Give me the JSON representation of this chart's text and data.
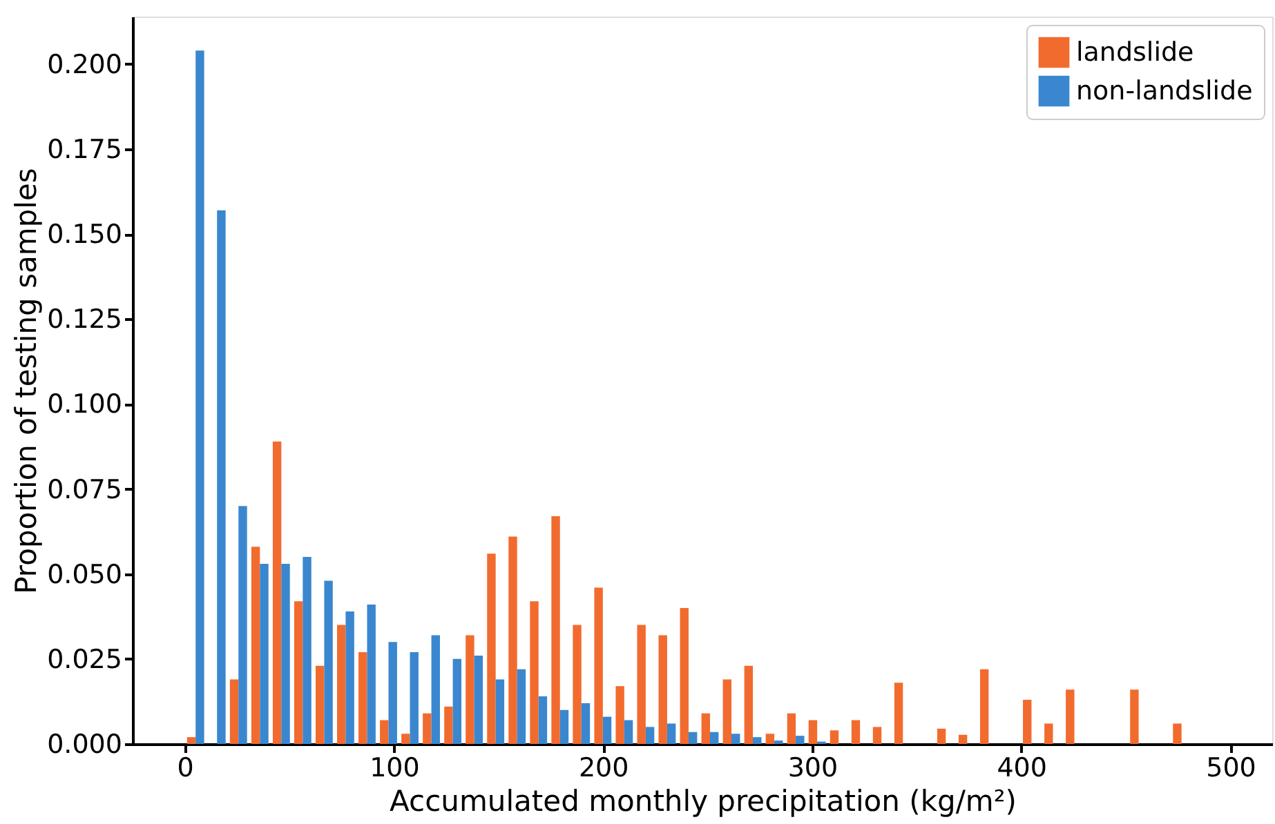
{
  "chart_data": {
    "type": "histogram",
    "xlabel": "Accumulated monthly precipitation (kg/m²)",
    "ylabel": "Proportion of testing samples",
    "bins": [
      0,
      10.25,
      20.5,
      30.75,
      41,
      51.25,
      61.5,
      71.75,
      82,
      92.25,
      102.5,
      112.75,
      123,
      133.25,
      143.5,
      153.75,
      164,
      174.25,
      184.5,
      194.75,
      205,
      215.25,
      225.5,
      235.75,
      246,
      256.25,
      266.5,
      276.75,
      287,
      297.25,
      307.5,
      317.75,
      328,
      338.25,
      348.5,
      358.75,
      369,
      379.25,
      389.5,
      399.75,
      410,
      420.25,
      430.5,
      440.75,
      451,
      461.25,
      471.5,
      481.75
    ],
    "series": [
      {
        "name": "landslide",
        "color": "#f26b2e",
        "values": [
          0.002,
          0,
          0.019,
          0.058,
          0.089,
          0.042,
          0.023,
          0.035,
          0.027,
          0.007,
          0.003,
          0.009,
          0.011,
          0.032,
          0.056,
          0.061,
          0.042,
          0.067,
          0.035,
          0.046,
          0.017,
          0.035,
          0.032,
          0.04,
          0.009,
          0.019,
          0.023,
          0.003,
          0.009,
          0.007,
          0.004,
          0.007,
          0.005,
          0.018,
          0,
          0.0045,
          0.0027,
          0.022,
          0,
          0.013,
          0.006,
          0.016,
          0,
          0,
          0.016,
          0,
          0.006
        ]
      },
      {
        "name": "non-landslide",
        "color": "#3a87cf",
        "values": [
          0.204,
          0.157,
          0.07,
          0.053,
          0.053,
          0.055,
          0.048,
          0.039,
          0.041,
          0.03,
          0.027,
          0.032,
          0.025,
          0.026,
          0.019,
          0.022,
          0.014,
          0.01,
          0.012,
          0.008,
          0.007,
          0.005,
          0.006,
          0.0035,
          0.0035,
          0.003,
          0.002,
          0.001,
          0.0024,
          0.0007,
          0,
          0,
          0,
          0,
          0,
          0,
          0,
          0,
          0,
          0,
          0,
          0,
          0,
          0,
          0,
          0,
          0
        ]
      }
    ],
    "xlim": [
      -25,
      520
    ],
    "xticks": [
      0,
      100,
      200,
      300,
      400,
      500
    ],
    "ylim": [
      0,
      0.214
    ],
    "yticks": [
      {
        "value": 0,
        "label": "0.000"
      },
      {
        "value": 0.025,
        "label": "0.025"
      },
      {
        "value": 0.05,
        "label": "0.050"
      },
      {
        "value": 0.075,
        "label": "0.075"
      },
      {
        "value": 0.1,
        "label": "0.100"
      },
      {
        "value": 0.125,
        "label": "0.125"
      },
      {
        "value": 0.15,
        "label": "0.150"
      },
      {
        "value": 0.175,
        "label": "0.175"
      },
      {
        "value": 0.2,
        "label": "0.200"
      }
    ],
    "grid": false,
    "legend": "top right"
  }
}
